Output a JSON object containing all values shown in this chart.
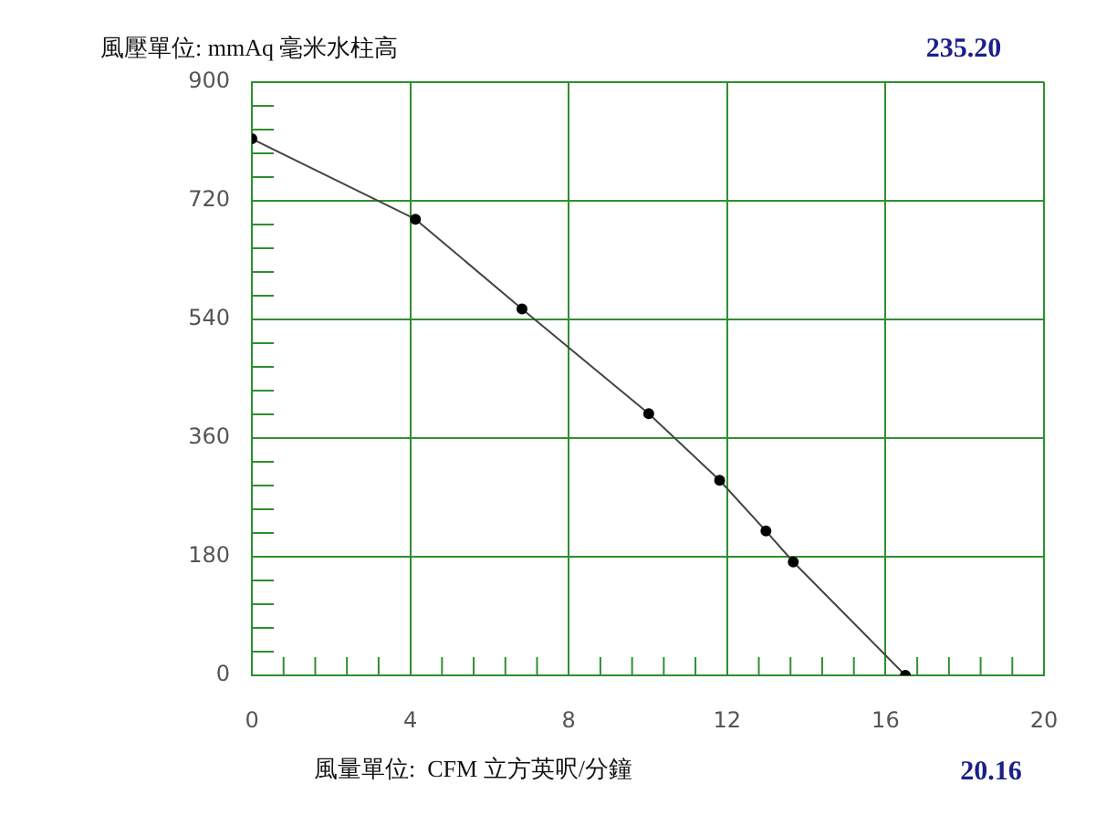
{
  "chart_data": {
    "type": "line",
    "ylabel": "風壓單位: mmAq 毫米水柱高",
    "xlabel": "風量單位:  CFM 立方英呎/分鐘",
    "annotations": [
      "235.20",
      "20.16"
    ],
    "series": [
      {
        "color": "#444444",
        "x": [
          0,
          4.13,
          6.82,
          10.02,
          11.81,
          12.98,
          13.67,
          16.5
        ],
        "values": [
          814,
          692,
          556,
          397,
          296,
          219,
          172,
          0
        ]
      }
    ],
    "xlim": [
      0,
      20
    ],
    "xticks": [
      0,
      {
        "value": 0.8,
        "label": null
      },
      {
        "value": 1.6,
        "label": null
      },
      {
        "value": 2.4,
        "label": null
      },
      {
        "value": 3.2,
        "label": null
      },
      4,
      {
        "value": 4.8,
        "label": null
      },
      {
        "value": 5.6,
        "label": null
      },
      {
        "value": 6.4,
        "label": null
      },
      {
        "value": 7.2,
        "label": null
      },
      8,
      {
        "value": 8.8,
        "label": null
      },
      {
        "value": 9.6,
        "label": null
      },
      {
        "value": 10.4,
        "label": null
      },
      {
        "value": 11.2,
        "label": null
      },
      12,
      {
        "value": 12.8,
        "label": null
      },
      {
        "value": 13.6,
        "label": null
      },
      {
        "value": 14.4,
        "label": null
      },
      {
        "value": 15.2,
        "label": null
      },
      16,
      {
        "value": 16.8,
        "label": null
      },
      {
        "value": 17.6,
        "label": null
      },
      {
        "value": 18.4,
        "label": null
      },
      {
        "value": 19.2,
        "label": null
      },
      20
    ],
    "ylim": [
      0,
      900
    ],
    "yticks": [
      0,
      {
        "value": 36,
        "label": null
      },
      {
        "value": 72,
        "label": null
      },
      {
        "value": 108,
        "label": null
      },
      {
        "value": 144,
        "label": null
      },
      180,
      {
        "value": 216,
        "label": null
      },
      {
        "value": 252,
        "label": null
      },
      {
        "value": 288,
        "label": null
      },
      {
        "value": 324,
        "label": null
      },
      360,
      {
        "value": 396,
        "label": null
      },
      {
        "value": 432,
        "label": null
      },
      {
        "value": 468,
        "label": null
      },
      {
        "value": 504,
        "label": null
      },
      540,
      {
        "value": 576,
        "label": null
      },
      {
        "value": 612,
        "label": null
      },
      {
        "value": 648,
        "label": null
      },
      {
        "value": 684,
        "label": null
      },
      720,
      {
        "value": 756,
        "label": null
      },
      {
        "value": 792,
        "label": null
      },
      {
        "value": 828,
        "label": null
      },
      {
        "value": 864,
        "label": null
      },
      900
    ],
    "grid": true,
    "marker": "circle",
    "line_style": "solid",
    "legend": false
  }
}
